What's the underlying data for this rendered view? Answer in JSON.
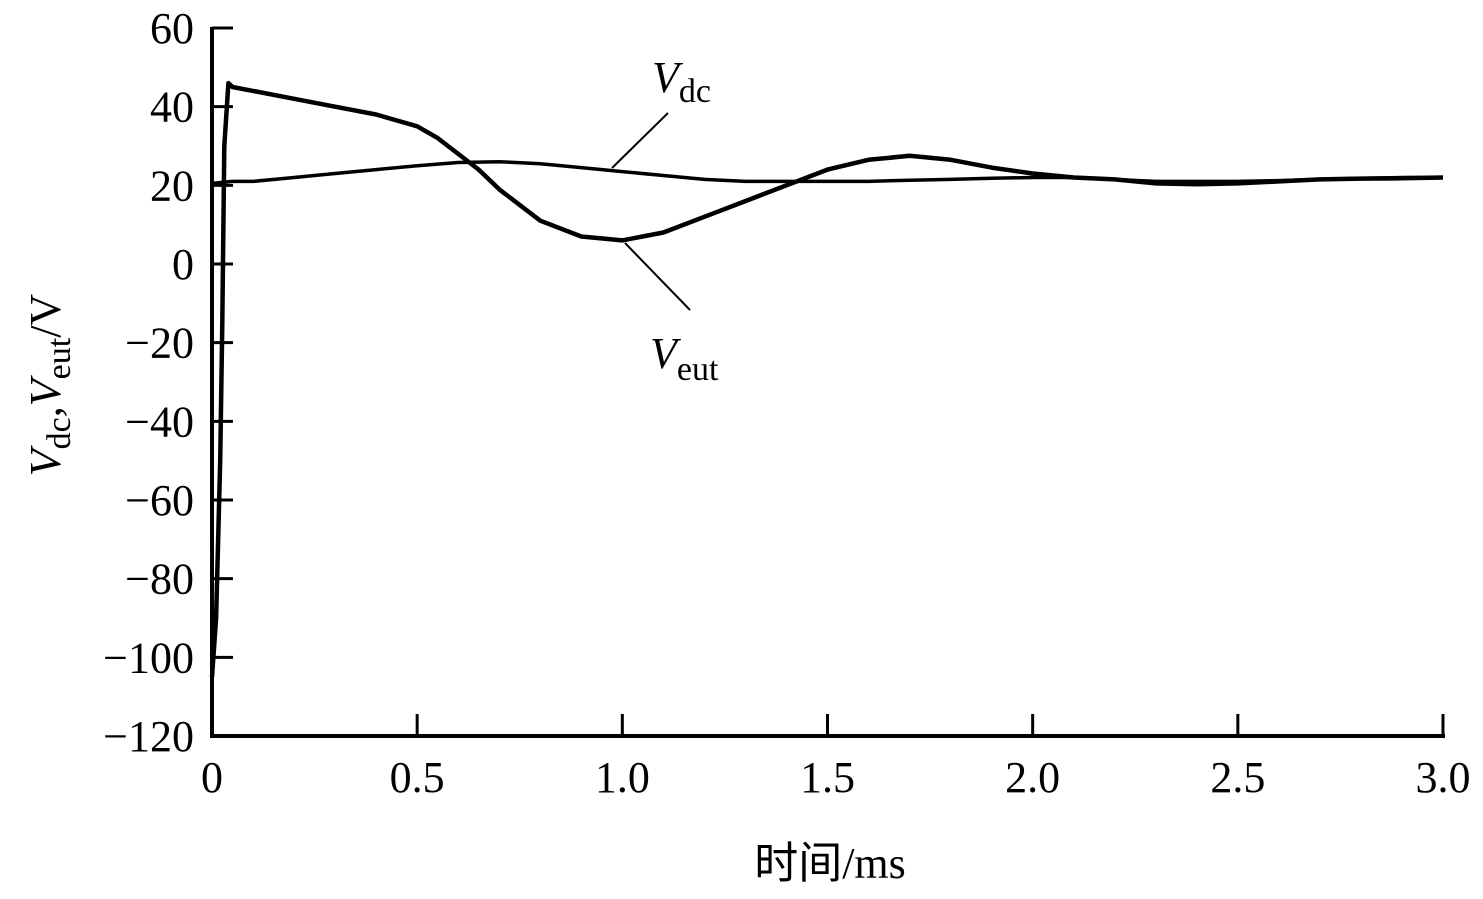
{
  "chart_data": {
    "type": "line",
    "title": "",
    "xlabel": "时间/ms",
    "ylabel": "V_dc, V_eut / V",
    "ylabel_parts": {
      "v1": "V",
      "s1": "dc",
      "comma": ",",
      "v2": "V",
      "s2": "eut",
      "unit": "/V"
    },
    "xlabel_parts": {
      "text": "时间/ms"
    },
    "xlim": [
      0,
      3.0
    ],
    "ylim": [
      -120,
      60
    ],
    "grid": false,
    "x_ticks": [
      "0",
      "0.5",
      "1.0",
      "1.5",
      "2.0",
      "2.5",
      "3.0"
    ],
    "y_ticks": [
      "60",
      "40",
      "20",
      "0",
      "−20",
      "−40",
      "−60",
      "−80",
      "−100",
      "−120"
    ],
    "annotations": [
      {
        "label_main": "V",
        "label_sub": "dc",
        "target_series": "V_dc"
      },
      {
        "label_main": "V",
        "label_sub": "eut",
        "target_series": "V_eut"
      }
    ],
    "series": [
      {
        "name": "V_dc",
        "x": [
          0.0,
          0.05,
          0.1,
          0.2,
          0.3,
          0.4,
          0.5,
          0.6,
          0.7,
          0.8,
          0.9,
          1.0,
          1.1,
          1.2,
          1.3,
          1.4,
          1.5,
          1.6,
          1.7,
          1.8,
          1.9,
          2.0,
          2.1,
          2.2,
          2.3,
          2.4,
          2.5,
          2.6,
          2.7,
          2.8,
          2.9,
          3.0
        ],
        "values": [
          20.5,
          21,
          21,
          22,
          23,
          24,
          25,
          25.8,
          26,
          25.5,
          24.5,
          23.5,
          22.5,
          21.5,
          21,
          21,
          21,
          21,
          21.3,
          21.5,
          21.8,
          22,
          22,
          21.5,
          21,
          21,
          21,
          21.2,
          21.5,
          21.8,
          22,
          22
        ]
      },
      {
        "name": "V_eut",
        "x": [
          0.0,
          0.01,
          0.02,
          0.025,
          0.03,
          0.04,
          0.05,
          0.1,
          0.2,
          0.3,
          0.4,
          0.5,
          0.55,
          0.6,
          0.65,
          0.7,
          0.8,
          0.9,
          1.0,
          1.1,
          1.2,
          1.3,
          1.4,
          1.5,
          1.6,
          1.7,
          1.8,
          1.9,
          2.0,
          2.1,
          2.2,
          2.3,
          2.4,
          2.5,
          2.6,
          2.7,
          2.8,
          2.9,
          3.0
        ],
        "values": [
          -105,
          -90,
          -50,
          -15,
          30,
          46,
          45,
          44,
          42,
          40,
          38,
          35,
          32,
          28,
          24,
          19,
          11,
          7,
          6,
          8,
          12,
          16,
          20,
          24,
          26.5,
          27.5,
          26.5,
          24.5,
          23,
          22,
          21.5,
          20.5,
          20.3,
          20.5,
          21,
          21.5,
          21.7,
          21.8,
          22
        ]
      }
    ]
  }
}
